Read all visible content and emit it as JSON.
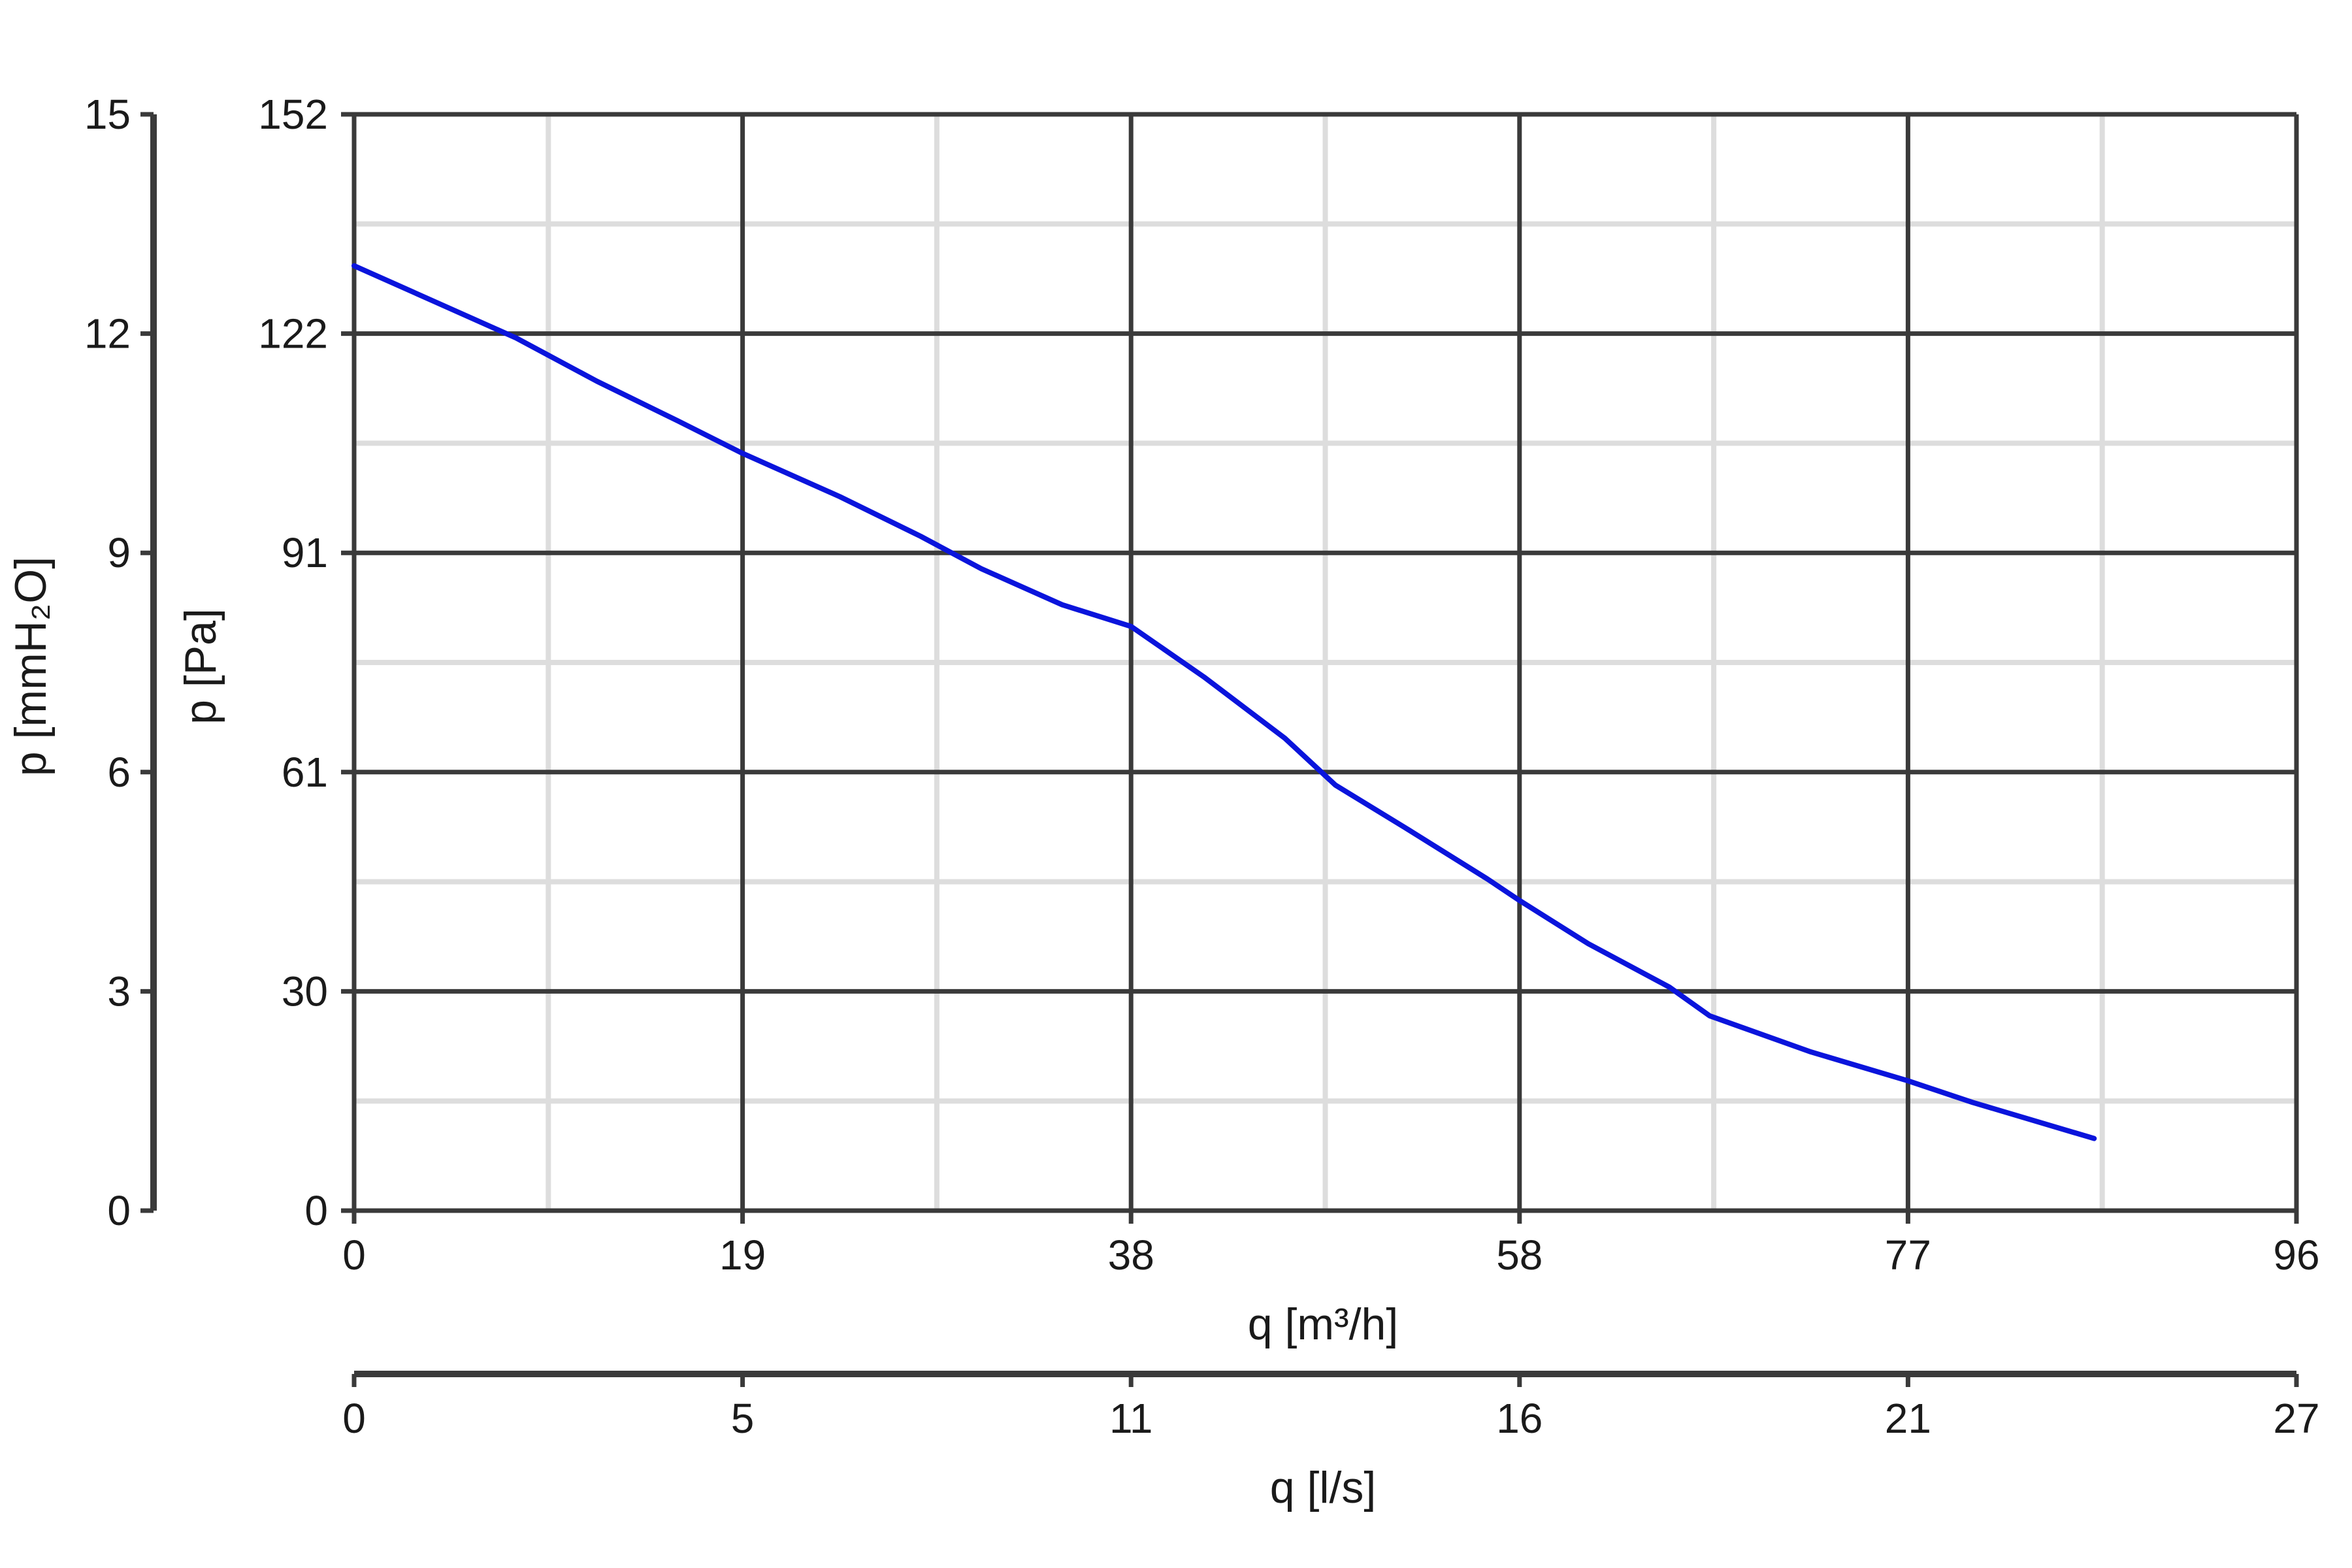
{
  "chart_data": {
    "type": "line",
    "title": "",
    "xlabel": "q [m³/h]",
    "ylabel": "p [Pa]",
    "xlim": [
      0,
      96
    ],
    "ylim": [
      0,
      152
    ],
    "grid": true,
    "x_ticks": [
      "0",
      "19",
      "38",
      "58",
      "77",
      "96"
    ],
    "y_ticks": [
      "0",
      "30",
      "61",
      "91",
      "122",
      "152"
    ],
    "secondary_x_axis": {
      "label": "q [l/s]",
      "ticks": [
        "0",
        "5",
        "11",
        "16",
        "21",
        "27"
      ]
    },
    "secondary_y_axis": {
      "label": "p [mmH₂O]",
      "ticks": [
        "0",
        "3",
        "6",
        "9",
        "12",
        "15"
      ]
    },
    "series": [
      {
        "color": "#0a14dc",
        "x": [
          0,
          4,
          8,
          12,
          16,
          19.2,
          24,
          28,
          31,
          35,
          38.4,
          42,
          46,
          48.5,
          52,
          56,
          57.6,
          61,
          65,
          67,
          72,
          76.8,
          80,
          86
        ],
        "y": [
          131,
          126,
          121,
          115,
          109.5,
          105,
          99,
          93.5,
          89,
          84,
          81,
          74,
          65.5,
          59,
          53,
          46,
          43,
          37,
          31,
          27,
          22,
          18,
          15,
          10
        ]
      }
    ],
    "colors": {
      "major_grid": "#3a3a3a",
      "minor_grid": "#dddddd",
      "axis": "#3a3a3a"
    }
  }
}
